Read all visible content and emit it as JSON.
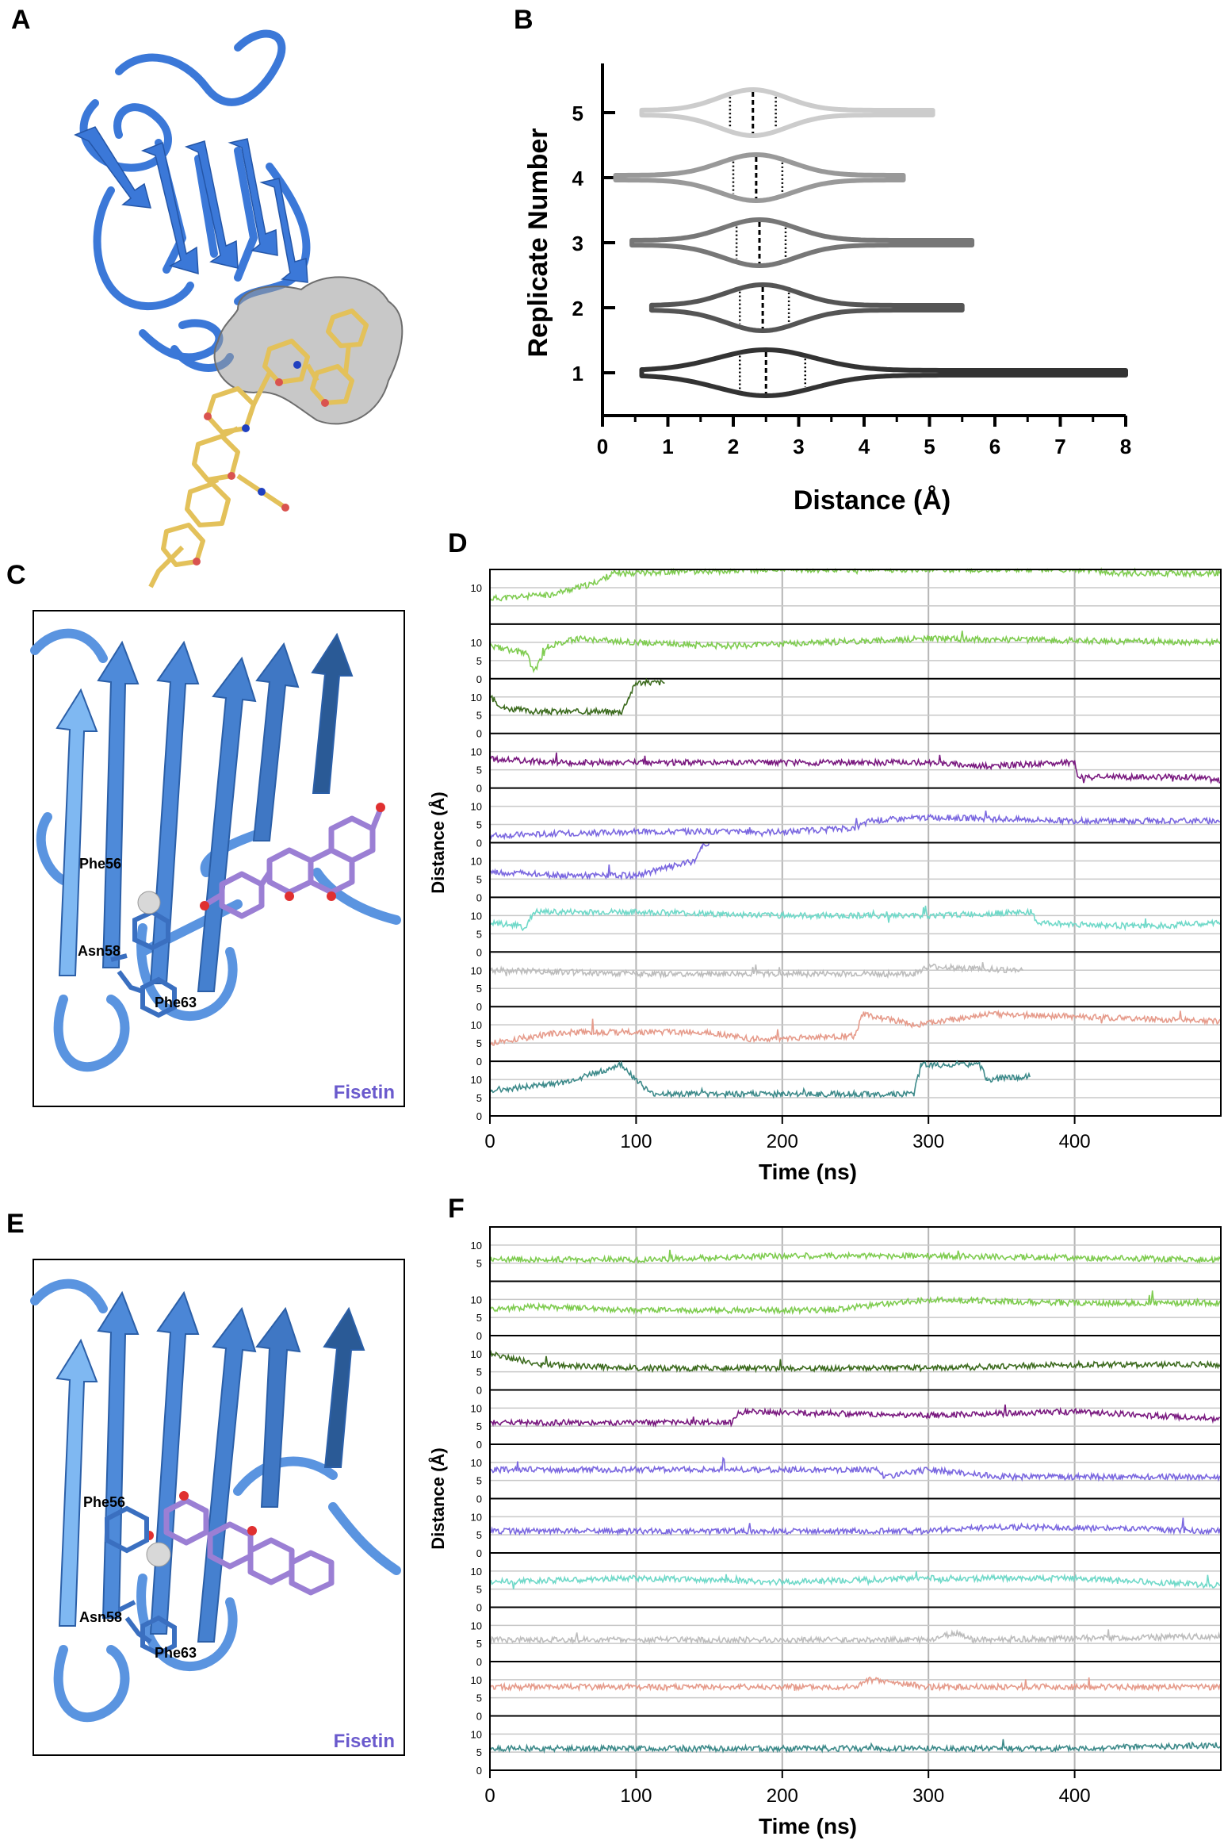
{
  "panel_labels": {
    "a": "A",
    "b": "B",
    "c": "C",
    "d": "D",
    "e": "E",
    "f": "F"
  },
  "structure_labels": {
    "c": {
      "res1": "Phe56",
      "res2": "Asn58",
      "res3": "Phe63",
      "ligand": "Fisetin"
    },
    "e": {
      "res1": "Phe56",
      "res2": "Asn58",
      "res3": "Phe63",
      "ligand": "Fisetin"
    }
  },
  "colors": {
    "protein_blue": "#3b78d8",
    "glycan_yellow": "#e3c15a",
    "surface_gray": "#9a9a9a",
    "ligand_purple": "#9b7fd4"
  },
  "chart_data": [
    {
      "id": "B",
      "type": "violin",
      "xlabel": "Distance (Å)",
      "ylabel": "Replicate Number",
      "xlim": [
        0,
        8
      ],
      "xticks": [
        0,
        1,
        2,
        3,
        4,
        5,
        6,
        7,
        8
      ],
      "categories": [
        "1",
        "2",
        "3",
        "4",
        "5"
      ],
      "series": [
        {
          "replicate": "1",
          "min": 0.6,
          "max": 8.0,
          "q1": 2.1,
          "median": 2.5,
          "q3": 3.1,
          "color": "#333333"
        },
        {
          "replicate": "2",
          "min": 0.75,
          "max": 5.5,
          "q1": 2.1,
          "median": 2.45,
          "q3": 2.85,
          "color": "#555555"
        },
        {
          "replicate": "3",
          "min": 0.45,
          "max": 5.65,
          "q1": 2.05,
          "median": 2.4,
          "q3": 2.8,
          "color": "#777777"
        },
        {
          "replicate": "4",
          "min": 0.2,
          "max": 4.6,
          "q1": 2.0,
          "median": 2.35,
          "q3": 2.75,
          "color": "#999999"
        },
        {
          "replicate": "5",
          "min": 0.6,
          "max": 5.05,
          "q1": 1.95,
          "median": 2.3,
          "q3": 2.65,
          "color": "#cccccc"
        }
      ]
    },
    {
      "id": "D",
      "type": "line",
      "xlabel": "Time (ns)",
      "ylabel": "Distance (Å)",
      "xlim": [
        0,
        500
      ],
      "xticks": [
        0,
        100,
        200,
        300,
        400
      ],
      "ylim": [
        0,
        15
      ],
      "ytick_labels_top": [
        "10"
      ],
      "ytick_labels": [
        "0",
        "5",
        "10"
      ],
      "series": [
        {
          "color": "#7fcc50",
          "segments": [
            [
              0,
              7
            ],
            [
              40,
              8
            ],
            [
              70,
              11
            ],
            [
              85,
              14
            ],
            [
              200,
              15
            ],
            [
              400,
              15
            ],
            [
              430,
              14
            ],
            [
              460,
              14
            ],
            [
              500,
              14
            ]
          ]
        },
        {
          "color": "#7fcc50",
          "segments": [
            [
              0,
              9
            ],
            [
              25,
              7
            ],
            [
              30,
              2
            ],
            [
              40,
              9
            ],
            [
              60,
              11
            ],
            [
              100,
              10
            ],
            [
              160,
              9
            ],
            [
              230,
              10
            ],
            [
              300,
              11
            ],
            [
              500,
              10
            ]
          ]
        },
        {
          "color": "#3d6b1f",
          "segments": [
            [
              0,
              10
            ],
            [
              10,
              7
            ],
            [
              30,
              6
            ],
            [
              90,
              6
            ],
            [
              95,
              10
            ],
            [
              100,
              14
            ],
            [
              120,
              null
            ]
          ]
        },
        {
          "color": "#7a1a80",
          "segments": [
            [
              0,
              8
            ],
            [
              50,
              7
            ],
            [
              150,
              7
            ],
            [
              200,
              7
            ],
            [
              300,
              7
            ],
            [
              340,
              6
            ],
            [
              400,
              7
            ],
            [
              402,
              3
            ],
            [
              480,
              3
            ],
            [
              500,
              2
            ]
          ]
        },
        {
          "color": "#7b68e0",
          "segments": [
            [
              0,
              2
            ],
            [
              100,
              3
            ],
            [
              200,
              3
            ],
            [
              250,
              4
            ],
            [
              260,
              6
            ],
            [
              300,
              7
            ],
            [
              400,
              6
            ],
            [
              500,
              6
            ]
          ]
        },
        {
          "color": "#7b68e0",
          "segments": [
            [
              0,
              7
            ],
            [
              50,
              6
            ],
            [
              100,
              6
            ],
            [
              120,
              8
            ],
            [
              140,
              10
            ],
            [
              145,
              14
            ],
            [
              150,
              null
            ]
          ]
        },
        {
          "color": "#70d9c9",
          "segments": [
            [
              0,
              8
            ],
            [
              25,
              7
            ],
            [
              30,
              11
            ],
            [
              100,
              11
            ],
            [
              200,
              10
            ],
            [
              300,
              10
            ],
            [
              370,
              11
            ],
            [
              375,
              8
            ],
            [
              450,
              7
            ],
            [
              500,
              8
            ]
          ]
        },
        {
          "color": "#bdbdbd",
          "segments": [
            [
              0,
              10
            ],
            [
              100,
              9
            ],
            [
              200,
              9
            ],
            [
              290,
              9
            ],
            [
              300,
              11
            ],
            [
              360,
              10
            ],
            [
              365,
              null
            ]
          ]
        },
        {
          "color": "#e69b8b",
          "segments": [
            [
              0,
              5
            ],
            [
              50,
              8
            ],
            [
              150,
              8
            ],
            [
              180,
              6
            ],
            [
              250,
              7
            ],
            [
              255,
              13
            ],
            [
              290,
              10
            ],
            [
              310,
              11
            ],
            [
              340,
              13
            ],
            [
              500,
              11
            ]
          ]
        },
        {
          "color": "#3d8a8a",
          "segments": [
            [
              0,
              7
            ],
            [
              50,
              9
            ],
            [
              90,
              14
            ],
            [
              110,
              6
            ],
            [
              200,
              6
            ],
            [
              290,
              6
            ],
            [
              295,
              14
            ],
            [
              335,
              14
            ],
            [
              340,
              10
            ],
            [
              370,
              11
            ]
          ]
        }
      ]
    },
    {
      "id": "F",
      "type": "line",
      "xlabel": "Time (ns)",
      "ylabel": "Distance (Å)",
      "xlim": [
        0,
        500
      ],
      "xticks": [
        0,
        100,
        200,
        300,
        400
      ],
      "ylim": [
        0,
        15
      ],
      "ytick_labels_top": [
        "10",
        "5"
      ],
      "ytick_labels": [
        "0",
        "5",
        "10"
      ],
      "series": [
        {
          "color": "#7fcc50",
          "segments": [
            [
              0,
              6
            ],
            [
              100,
              6
            ],
            [
              200,
              7
            ],
            [
              300,
              7
            ],
            [
              500,
              6
            ]
          ]
        },
        {
          "color": "#7fcc50",
          "segments": [
            [
              0,
              7
            ],
            [
              30,
              8
            ],
            [
              100,
              7
            ],
            [
              230,
              7
            ],
            [
              300,
              10
            ],
            [
              400,
              9
            ],
            [
              500,
              9
            ]
          ]
        },
        {
          "color": "#3d6b1f",
          "segments": [
            [
              0,
              10
            ],
            [
              35,
              7
            ],
            [
              100,
              6
            ],
            [
              300,
              6
            ],
            [
              400,
              7
            ],
            [
              500,
              7
            ]
          ]
        },
        {
          "color": "#7a1a80",
          "segments": [
            [
              0,
              6
            ],
            [
              100,
              6
            ],
            [
              165,
              6
            ],
            [
              170,
              9
            ],
            [
              300,
              8
            ],
            [
              400,
              9
            ],
            [
              500,
              7
            ]
          ]
        },
        {
          "color": "#7b68e0",
          "segments": [
            [
              0,
              8
            ],
            [
              100,
              8
            ],
            [
              200,
              8
            ],
            [
              265,
              8
            ],
            [
              270,
              6
            ],
            [
              300,
              8
            ],
            [
              350,
              6
            ],
            [
              500,
              6
            ]
          ]
        },
        {
          "color": "#7b68e0",
          "segments": [
            [
              0,
              6
            ],
            [
              100,
              6
            ],
            [
              200,
              6
            ],
            [
              300,
              6
            ],
            [
              330,
              7
            ],
            [
              400,
              7
            ],
            [
              500,
              6
            ]
          ]
        },
        {
          "color": "#70d9c9",
          "segments": [
            [
              0,
              7
            ],
            [
              100,
              8
            ],
            [
              200,
              7
            ],
            [
              300,
              8
            ],
            [
              400,
              8
            ],
            [
              500,
              6
            ]
          ]
        },
        {
          "color": "#bdbdbd",
          "segments": [
            [
              0,
              6
            ],
            [
              100,
              6
            ],
            [
              300,
              6
            ],
            [
              320,
              8
            ],
            [
              330,
              6
            ],
            [
              500,
              7
            ]
          ]
        },
        {
          "color": "#e69b8b",
          "segments": [
            [
              0,
              8
            ],
            [
              100,
              8
            ],
            [
              250,
              8
            ],
            [
              260,
              10
            ],
            [
              300,
              8
            ],
            [
              400,
              8
            ],
            [
              500,
              8
            ]
          ]
        },
        {
          "color": "#3d8a8a",
          "segments": [
            [
              0,
              6
            ],
            [
              100,
              6
            ],
            [
              200,
              6
            ],
            [
              300,
              6
            ],
            [
              400,
              6
            ],
            [
              500,
              7
            ]
          ]
        }
      ]
    }
  ]
}
